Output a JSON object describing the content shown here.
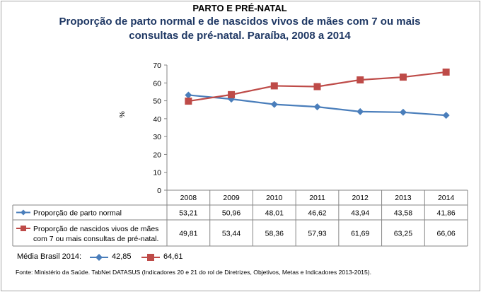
{
  "section_title": "PARTO E PRÉ-NATAL",
  "chart_data": {
    "type": "line",
    "title_lines": [
      "Proporção de parto normal e de nascidos vivos de mães com 7 ou mais",
      "consultas de pré-natal. Paraíba, 2008 a 2014"
    ],
    "ylabel": "%",
    "ylim": [
      0,
      70
    ],
    "yticks": [
      0,
      10,
      20,
      30,
      40,
      50,
      60,
      70
    ],
    "categories": [
      "2008",
      "2009",
      "2010",
      "2011",
      "2012",
      "2013",
      "2014"
    ],
    "series": [
      {
        "name": "Proporção de parto normal",
        "color": "#4a7ebb",
        "marker": "diamond",
        "values": [
          53.21,
          50.96,
          48.01,
          46.62,
          43.94,
          43.58,
          41.86
        ],
        "labels": [
          "53,21",
          "50,96",
          "48,01",
          "46,62",
          "43,94",
          "43,58",
          "41,86"
        ]
      },
      {
        "name_lines": [
          "Proporção de nascidos vivos de mães",
          "com 7 ou mais consultas de pré-natal."
        ],
        "color": "#be4b48",
        "marker": "square",
        "values": [
          49.81,
          53.44,
          58.36,
          57.93,
          61.69,
          63.25,
          66.06
        ],
        "labels": [
          "49,81",
          "53,44",
          "58,36",
          "57,93",
          "61,69",
          "63,25",
          "66,06"
        ]
      }
    ],
    "grid": false,
    "legend": "data-table"
  },
  "brazil_average": {
    "label": "Média Brasil 2014:",
    "parto_normal": "42,85",
    "pre_natal": "64,61"
  },
  "source": "Fonte: Ministério da Saúde. TabNet DATASUS (Indicadores 20 e 21 do rol de Diretrizes, Objetivos, Metas e Indicadores 2013-2015)."
}
